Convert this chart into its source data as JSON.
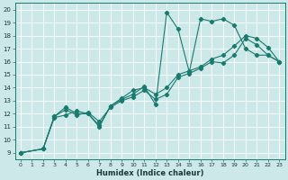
{
  "bg_color": "#cce8e8",
  "grid_color": "#ffffff",
  "line_color": "#1a7a6e",
  "xlabel": "Humidex (Indice chaleur)",
  "xlim": [
    -0.5,
    23.5
  ],
  "ylim": [
    8.5,
    20.5
  ],
  "xticks": [
    0,
    1,
    2,
    3,
    4,
    5,
    6,
    7,
    8,
    9,
    10,
    11,
    12,
    13,
    14,
    15,
    16,
    17,
    18,
    19,
    20,
    21,
    22,
    23
  ],
  "yticks": [
    9,
    10,
    11,
    12,
    13,
    14,
    15,
    16,
    17,
    18,
    19,
    20
  ],
  "line1_x": [
    0,
    2,
    3,
    4,
    5,
    6,
    7,
    8,
    9,
    10,
    11,
    12,
    13,
    14,
    15,
    16,
    17,
    18,
    19,
    20,
    21,
    22,
    23
  ],
  "line1_y": [
    9.0,
    9.3,
    11.8,
    12.3,
    11.9,
    12.1,
    11.4,
    12.5,
    13.0,
    13.3,
    13.8,
    13.1,
    13.5,
    14.8,
    15.1,
    15.5,
    16.0,
    15.9,
    16.5,
    17.8,
    17.3,
    16.5,
    16.0
  ],
  "line2_x": [
    0,
    2,
    3,
    4,
    5,
    6,
    7,
    8,
    9,
    10,
    11,
    12,
    13,
    14,
    15,
    16,
    17,
    18,
    19,
    20,
    21,
    22,
    23
  ],
  "line2_y": [
    9.0,
    9.3,
    11.8,
    12.5,
    12.0,
    12.0,
    11.1,
    12.6,
    13.1,
    13.5,
    14.1,
    12.7,
    19.8,
    18.5,
    15.2,
    19.3,
    19.1,
    19.3,
    18.8,
    17.0,
    16.5,
    16.5,
    16.0
  ],
  "line3_x": [
    0,
    2,
    3,
    4,
    5,
    6,
    7,
    8,
    9,
    10,
    11,
    12,
    13,
    14,
    15,
    16,
    17,
    18,
    19,
    20,
    21,
    22,
    23
  ],
  "line3_y": [
    9.0,
    9.3,
    11.7,
    11.9,
    12.2,
    12.0,
    11.0,
    12.6,
    13.2,
    13.8,
    14.0,
    13.5,
    14.0,
    15.0,
    15.3,
    15.6,
    16.2,
    16.5,
    17.2,
    18.0,
    17.8,
    17.1,
    16.0
  ]
}
